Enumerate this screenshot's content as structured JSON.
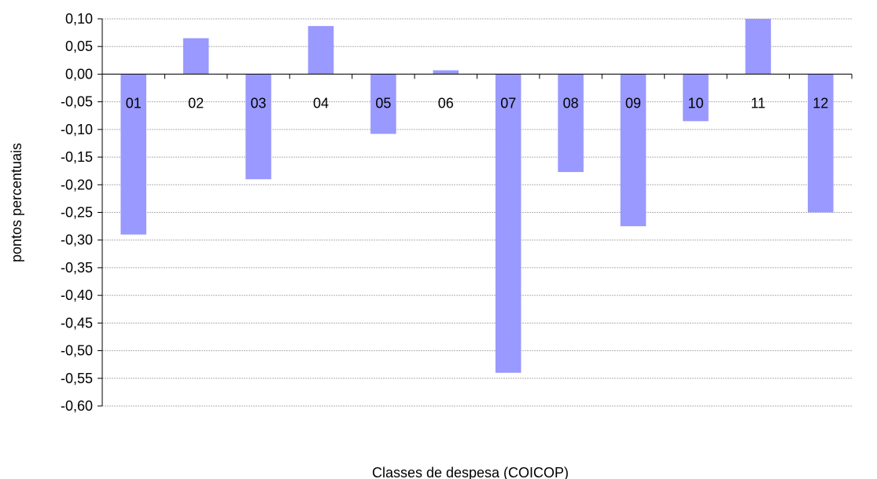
{
  "chart_data": {
    "type": "bar",
    "categories": [
      "01",
      "02",
      "03",
      "04",
      "05",
      "06",
      "07",
      "08",
      "09",
      "10",
      "11",
      "12"
    ],
    "values": [
      -0.29,
      0.065,
      -0.19,
      0.087,
      -0.108,
      0.007,
      -0.54,
      -0.177,
      -0.275,
      -0.085,
      0.1,
      -0.25
    ],
    "xlabel": "Classes de despesa (COICOP)",
    "ylabel": "pontos percentuais",
    "ylim": [
      -0.6,
      0.1
    ],
    "ytick_step": 0.05,
    "yticks": [
      "0,10",
      "0,05",
      "0,00",
      "-0,05",
      "-0,10",
      "-0,15",
      "-0,20",
      "-0,25",
      "-0,30",
      "-0,35",
      "-0,40",
      "-0,45",
      "-0,50",
      "-0,55",
      "-0,60"
    ],
    "grid": true,
    "legend": "none",
    "colors": {
      "bar": "#9999ff",
      "grid": "#b0b0b0",
      "axis": "#000000"
    }
  }
}
